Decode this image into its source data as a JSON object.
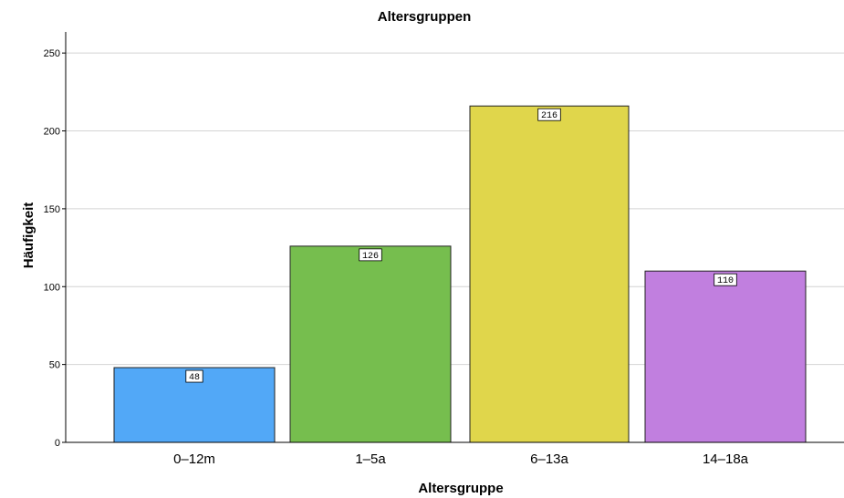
{
  "chart_data": {
    "type": "bar",
    "title": "Altersgruppen",
    "xlabel": "Altersgruppe",
    "ylabel": "Häufigkeit",
    "categories": [
      "0–12m",
      "1–5a",
      "6–13a",
      "14–18a"
    ],
    "values": [
      48,
      126,
      216,
      110
    ],
    "data_labels": [
      "48",
      "126",
      "216",
      "110"
    ],
    "colors": [
      "#52a8f7",
      "#76be4e",
      "#e0d64b",
      "#c17fdf"
    ],
    "ylim": [
      0,
      260
    ],
    "yticks": [
      0,
      50,
      100,
      150,
      200,
      250
    ],
    "ytick_labels": [
      "0",
      "50",
      "100",
      "150",
      "200",
      "250"
    ],
    "grid": "horizontal"
  }
}
